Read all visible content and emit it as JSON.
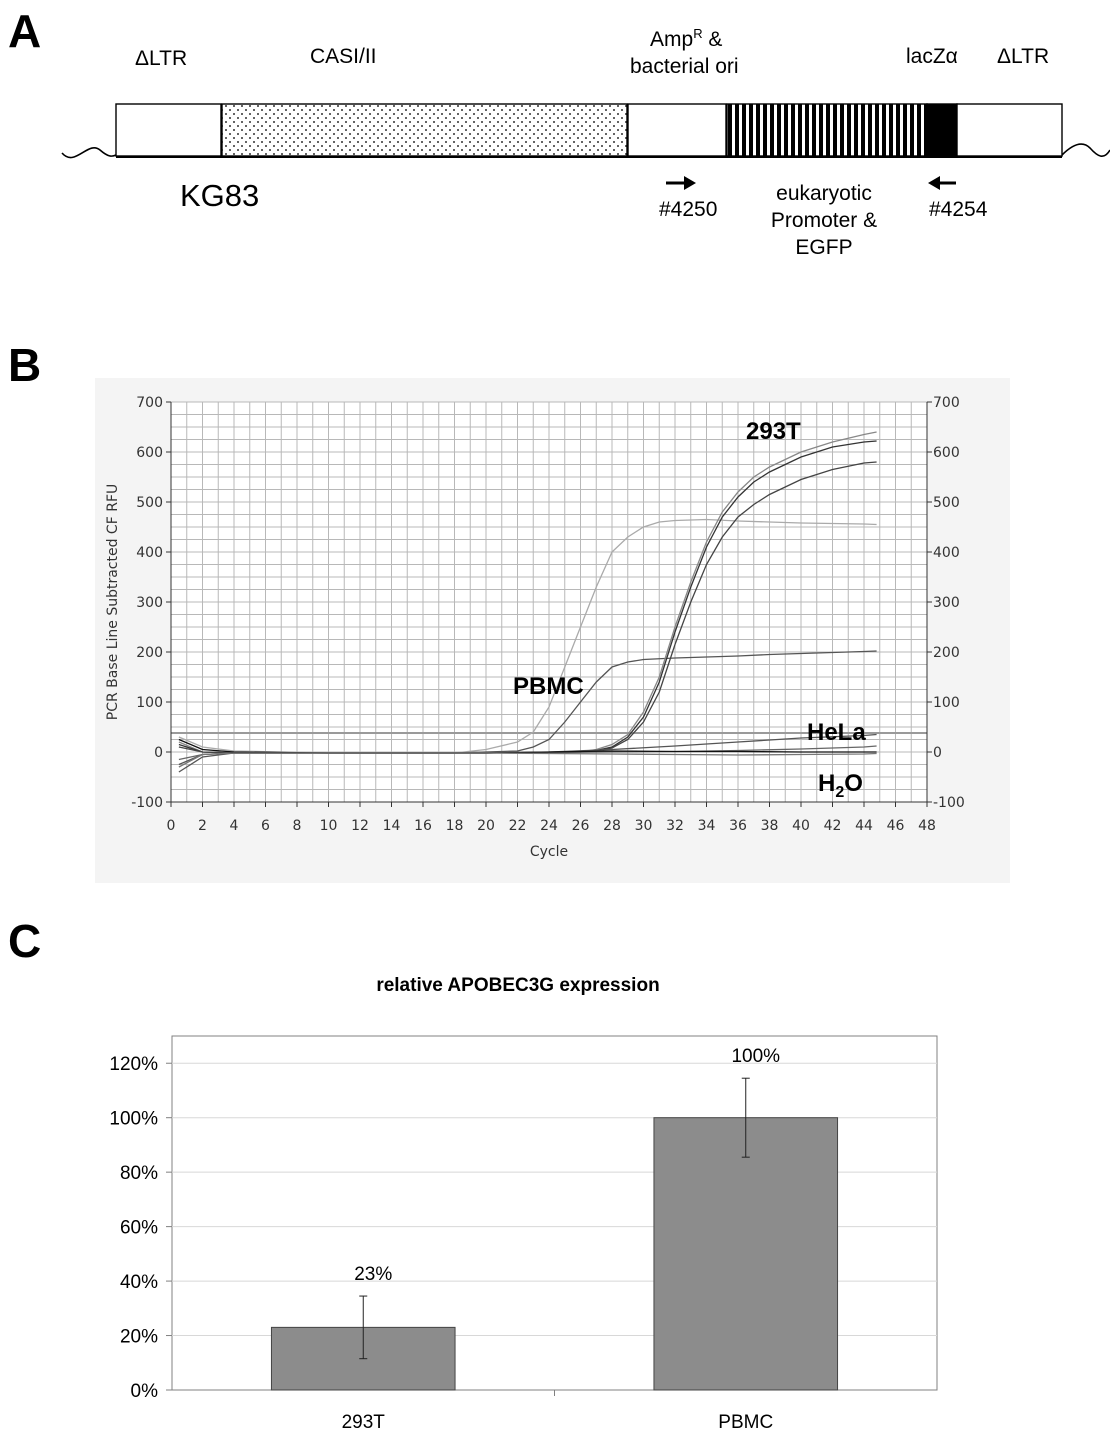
{
  "panels": {
    "a": "A",
    "b": "B",
    "c": "C"
  },
  "construct": {
    "name": "KG83",
    "ltr_left": "ΔLTR",
    "casi": "CASI/II",
    "ampr_main": "Amp",
    "ampr_sup": "R",
    "ampr_rest": " &",
    "bacterial_ori": "bacterial ori",
    "lacz": "lacZα",
    "ltr_right": "ΔLTR",
    "primer_fwd": "#4250",
    "primer_rev": "#4254",
    "promoter_lines": [
      "eukaryotic",
      "Promoter &",
      "EGFP"
    ]
  },
  "chart_data": [
    {
      "type": "line",
      "xlabel": "Cycle",
      "ylabel": "PCR Base Line Subtracted CF RFU",
      "xlim": [
        0,
        48
      ],
      "ylim": [
        -100,
        700
      ],
      "x_ticks": [
        0,
        2,
        4,
        6,
        8,
        10,
        12,
        14,
        16,
        18,
        20,
        22,
        24,
        26,
        28,
        30,
        32,
        34,
        36,
        38,
        40,
        42,
        44,
        46,
        48
      ],
      "y_ticks": [
        -100,
        0,
        100,
        200,
        300,
        400,
        500,
        600,
        700
      ],
      "grid": true,
      "threshold": 38,
      "annotations": {
        "t293": "293T",
        "pbmc": "PBMC",
        "hela": "HeLa",
        "h2o_main": "H",
        "h2o_sub": "2",
        "h2o_end": "O"
      },
      "series": [
        {
          "color": "#aaaaaa",
          "x": [
            0.5,
            2,
            4,
            10,
            18,
            20,
            22,
            23,
            24,
            25,
            26,
            27,
            28,
            29,
            30,
            31,
            32,
            34,
            36,
            38,
            40,
            42,
            44,
            44.8
          ],
          "y": [
            30,
            10,
            2,
            -2,
            -2,
            5,
            20,
            40,
            90,
            170,
            250,
            330,
            400,
            430,
            450,
            460,
            463,
            465,
            462,
            460,
            458,
            457,
            456,
            455
          ]
        },
        {
          "color": "#555555",
          "x": [
            0.5,
            2,
            4,
            10,
            18,
            22,
            23,
            24,
            25,
            26,
            27,
            28,
            29,
            30,
            32,
            34,
            36,
            38,
            40,
            42,
            44,
            44.8
          ],
          "y": [
            -40,
            -10,
            -2,
            -2,
            -2,
            2,
            10,
            25,
            60,
            100,
            140,
            170,
            180,
            185,
            188,
            190,
            192,
            195,
            197,
            199,
            201,
            202
          ]
        },
        {
          "color": "#888888",
          "x": [
            0.5,
            2,
            4,
            10,
            20,
            26,
            27,
            28,
            29,
            30,
            31,
            32,
            33,
            34,
            35,
            36,
            37,
            38,
            40,
            42,
            44,
            44.8
          ],
          "y": [
            20,
            0,
            -2,
            -2,
            -2,
            0,
            5,
            15,
            35,
            80,
            150,
            250,
            340,
            420,
            480,
            520,
            550,
            570,
            600,
            620,
            635,
            640
          ]
        },
        {
          "color": "#333333",
          "x": [
            0.5,
            2,
            4,
            10,
            20,
            26,
            27,
            28,
            29,
            30,
            31,
            32,
            33,
            34,
            35,
            36,
            37,
            38,
            40,
            42,
            44,
            44.8
          ],
          "y": [
            15,
            0,
            -2,
            -2,
            -2,
            0,
            3,
            10,
            30,
            70,
            140,
            240,
            330,
            410,
            470,
            510,
            540,
            560,
            590,
            610,
            620,
            622
          ]
        },
        {
          "color": "#444444",
          "x": [
            0.5,
            2,
            4,
            10,
            20,
            26,
            27,
            28,
            29,
            30,
            31,
            32,
            33,
            34,
            35,
            36,
            37,
            38,
            40,
            42,
            44,
            44.8
          ],
          "y": [
            10,
            0,
            -2,
            -2,
            -2,
            0,
            2,
            8,
            25,
            60,
            120,
            215,
            300,
            375,
            430,
            470,
            495,
            515,
            545,
            565,
            578,
            580
          ]
        },
        {
          "color": "#555555",
          "x": [
            0.5,
            2,
            4,
            10,
            20,
            24,
            28,
            32,
            36,
            40,
            44,
            44.8
          ],
          "y": [
            -25,
            -5,
            -2,
            -2,
            -2,
            0,
            5,
            12,
            20,
            28,
            33,
            35
          ]
        },
        {
          "color": "#666666",
          "x": [
            0.5,
            2,
            4,
            10,
            20,
            24,
            28,
            32,
            36,
            40,
            44,
            44.8
          ],
          "y": [
            -15,
            -5,
            -2,
            -2,
            -2,
            -1,
            0,
            1,
            3,
            6,
            10,
            12
          ]
        },
        {
          "color": "#111111",
          "x": [
            0.5,
            2,
            4,
            10,
            20,
            24,
            28,
            32,
            36,
            40,
            44,
            44.8
          ],
          "y": [
            25,
            5,
            0,
            -2,
            -2,
            0,
            2,
            1,
            1,
            0,
            0,
            0
          ]
        },
        {
          "color": "#777777",
          "x": [
            0.5,
            2,
            4,
            10,
            20,
            24,
            28,
            32,
            36,
            40,
            44,
            44.8
          ],
          "y": [
            -30,
            -5,
            -2,
            -2,
            -2,
            -3,
            -4,
            -5,
            -6,
            -5,
            -4,
            -3
          ]
        }
      ]
    },
    {
      "type": "bar",
      "title": "relative APOBEC3G expression",
      "categories": [
        "293T",
        "PBMC"
      ],
      "values": [
        23,
        100
      ],
      "value_labels": [
        "23%",
        "100%"
      ],
      "error": [
        11.5,
        14.5
      ],
      "ylim": [
        0,
        130
      ],
      "y_ticks": [
        0,
        20,
        40,
        60,
        80,
        100,
        120
      ],
      "y_tick_labels": [
        "0%",
        "20%",
        "40%",
        "60%",
        "80%",
        "100%",
        "120%"
      ],
      "bar_color": "#8c8c8c",
      "grid": true
    }
  ]
}
